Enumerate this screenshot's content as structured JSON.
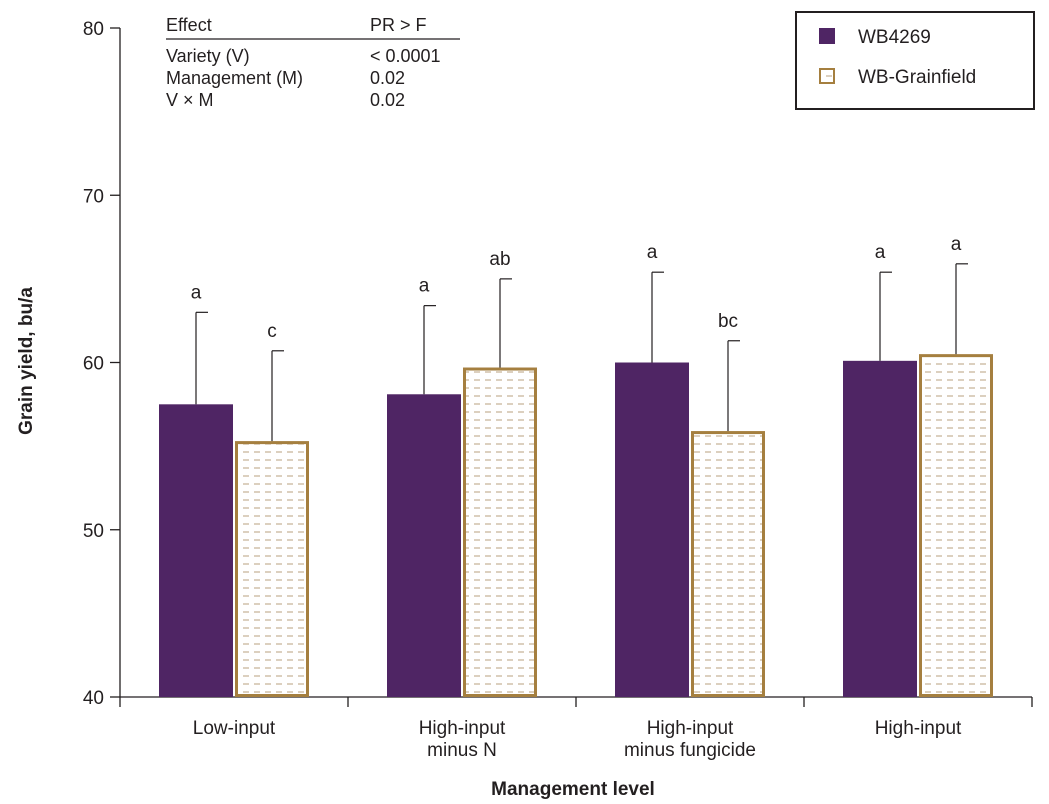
{
  "chart_data": {
    "type": "bar",
    "xlabel": "Management level",
    "ylabel": "Grain yield, bu/a",
    "ylim": [
      40,
      80
    ],
    "yticks": [
      40,
      50,
      60,
      70,
      80
    ],
    "categories": [
      [
        "Low-input"
      ],
      [
        "High-input",
        "minus N"
      ],
      [
        "High-input",
        "minus fungicide"
      ],
      [
        "High-input"
      ]
    ],
    "series": [
      {
        "name": "WB4269",
        "color": "#4f2564",
        "fill": "solid",
        "values": [
          57.5,
          58.1,
          60.0,
          60.1
        ],
        "error": [
          5.5,
          5.3,
          5.4,
          5.3
        ],
        "letters": [
          "a",
          "a",
          "a",
          "a"
        ]
      },
      {
        "name": "WB-Grainfield",
        "color": "#a57f3f",
        "fill": "dashed-pattern",
        "values": [
          55.3,
          59.7,
          55.9,
          60.5
        ],
        "error": [
          5.4,
          5.3,
          5.4,
          5.4
        ],
        "letters": [
          "c",
          "ab",
          "bc",
          "a"
        ]
      }
    ],
    "legend": {
      "position": "top-right"
    },
    "grid": false,
    "stats_table": {
      "header": [
        "Effect",
        "PR > F"
      ],
      "rows": [
        [
          "Variety (V)",
          "< 0.0001"
        ],
        [
          "Management (M)",
          "0.02"
        ],
        [
          "V × M",
          "0.02"
        ]
      ]
    }
  }
}
